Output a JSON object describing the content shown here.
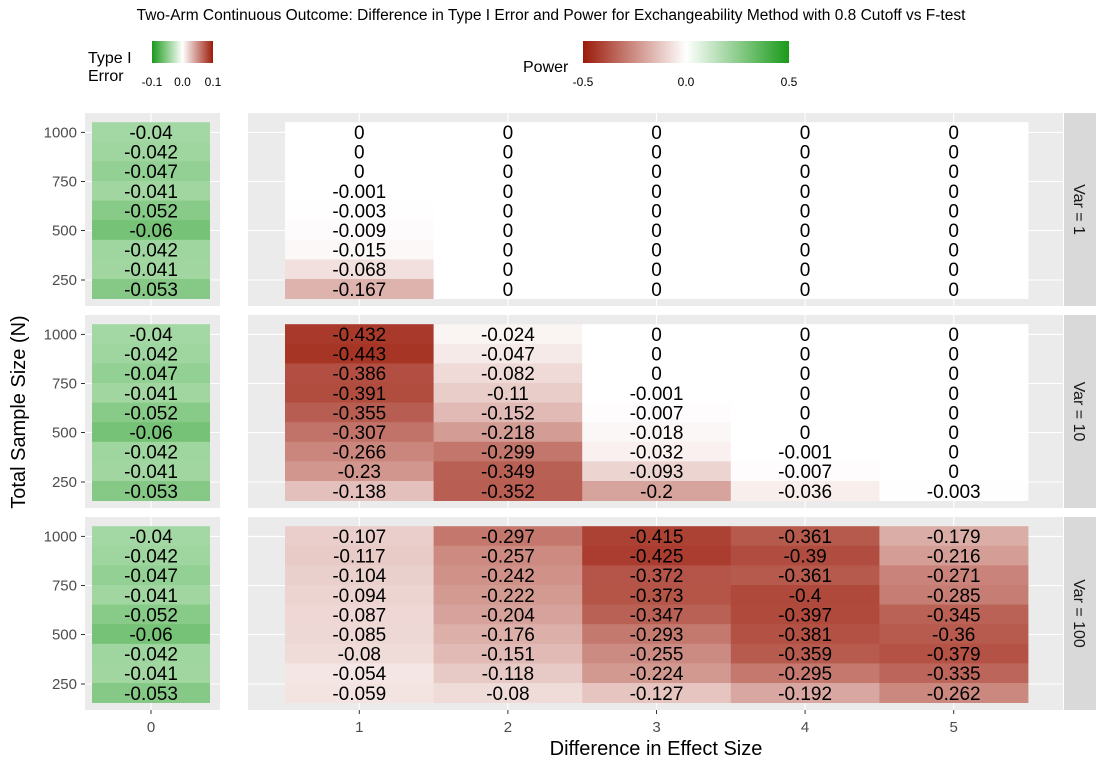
{
  "chart_data": {
    "type": "heatmap",
    "title": "Two-Arm Continuous Outcome: Difference in Type I Error and Power for Exchangeability Method with 0.8 Cutoff vs F-test",
    "xlabel": "Difference in Effect Size",
    "ylabel": "Total Sample Size (N)",
    "x_categories_type1": [
      "0"
    ],
    "x_categories_power": [
      "1",
      "2",
      "3",
      "4",
      "5"
    ],
    "y_ticks": [
      "250",
      "500",
      "750",
      "1000"
    ],
    "row_count": 9,
    "facets": [
      "Var = 1",
      "Var = 10",
      "Var = 100"
    ],
    "legends": {
      "type1": {
        "title_line1": "Type I",
        "title_line2": "Error",
        "range": [
          -0.1,
          0.1
        ],
        "tick_labels": [
          "-0.1",
          "0.0",
          "0.1"
        ],
        "low_color": "#1a9a1a",
        "high_color": "#9b1b0a"
      },
      "power": {
        "title": "Power",
        "range": [
          -0.5,
          0.5
        ],
        "tick_labels": [
          "-0.5",
          "0.0",
          "0.5"
        ],
        "low_color": "#9b1b0a",
        "high_color": "#1a9a1a"
      }
    },
    "type1_values": [
      "-0.04",
      "-0.042",
      "-0.047",
      "-0.041",
      "-0.052",
      "-0.06",
      "-0.042",
      "-0.041",
      "-0.053"
    ],
    "power_values": [
      [
        [
          "0",
          "0",
          "0",
          "0",
          "0"
        ],
        [
          "0",
          "0",
          "0",
          "0",
          "0"
        ],
        [
          "0",
          "0",
          "0",
          "0",
          "0"
        ],
        [
          "-0.001",
          "0",
          "0",
          "0",
          "0"
        ],
        [
          "-0.003",
          "0",
          "0",
          "0",
          "0"
        ],
        [
          "-0.009",
          "0",
          "0",
          "0",
          "0"
        ],
        [
          "-0.015",
          "0",
          "0",
          "0",
          "0"
        ],
        [
          "-0.068",
          "0",
          "0",
          "0",
          "0"
        ],
        [
          "-0.167",
          "0",
          "0",
          "0",
          "0"
        ]
      ],
      [
        [
          "-0.432",
          "-0.024",
          "0",
          "0",
          "0"
        ],
        [
          "-0.443",
          "-0.047",
          "0",
          "0",
          "0"
        ],
        [
          "-0.386",
          "-0.082",
          "0",
          "0",
          "0"
        ],
        [
          "-0.391",
          "-0.11",
          "-0.001",
          "0",
          "0"
        ],
        [
          "-0.355",
          "-0.152",
          "-0.007",
          "0",
          "0"
        ],
        [
          "-0.307",
          "-0.218",
          "-0.018",
          "0",
          "0"
        ],
        [
          "-0.266",
          "-0.299",
          "-0.032",
          "-0.001",
          "0"
        ],
        [
          "-0.23",
          "-0.349",
          "-0.093",
          "-0.007",
          "0"
        ],
        [
          "-0.138",
          "-0.352",
          "-0.2",
          "-0.036",
          "-0.003"
        ]
      ],
      [
        [
          "-0.107",
          "-0.297",
          "-0.415",
          "-0.361",
          "-0.179"
        ],
        [
          "-0.117",
          "-0.257",
          "-0.425",
          "-0.39",
          "-0.216"
        ],
        [
          "-0.104",
          "-0.242",
          "-0.372",
          "-0.361",
          "-0.271"
        ],
        [
          "-0.094",
          "-0.222",
          "-0.373",
          "-0.4",
          "-0.285"
        ],
        [
          "-0.087",
          "-0.204",
          "-0.347",
          "-0.397",
          "-0.345"
        ],
        [
          "-0.085",
          "-0.176",
          "-0.293",
          "-0.381",
          "-0.36"
        ],
        [
          "-0.08",
          "-0.151",
          "-0.255",
          "-0.359",
          "-0.379"
        ],
        [
          "-0.054",
          "-0.118",
          "-0.224",
          "-0.295",
          "-0.335"
        ],
        [
          "-0.059",
          "-0.08",
          "-0.127",
          "-0.192",
          "-0.262"
        ]
      ]
    ]
  }
}
